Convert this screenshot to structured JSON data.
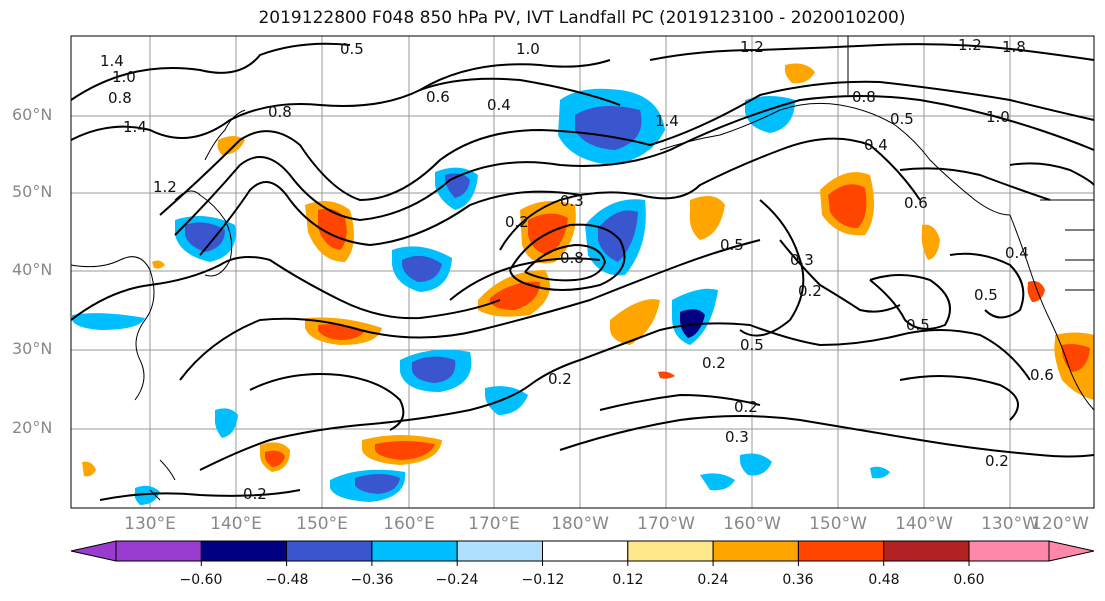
{
  "title": "2019122800 F048 850 hPa PV, IVT Landfall PC (2019123100 - 2020010200)",
  "map": {
    "lat_labels": [
      "60°N",
      "50°N",
      "40°N",
      "30°N",
      "20°N"
    ],
    "lon_labels": [
      "130°E",
      "140°E",
      "150°E",
      "160°E",
      "170°E",
      "180°W",
      "170°W",
      "160°W",
      "150°W",
      "140°W",
      "130°W",
      "120°W"
    ],
    "contour_labels": [
      "1.4",
      "1.0",
      "0.8",
      "1.4",
      "1.2",
      "0.5",
      "1.0",
      "0.8",
      "0.6",
      "0.4",
      "1.4",
      "1.2",
      "0.8",
      "1.0",
      "0.5",
      "0.4",
      "0.2",
      "0.3",
      "0.8",
      "0.5",
      "0.3",
      "0.2",
      "0.6",
      "0.5",
      "0.4",
      "0.5",
      "0.2",
      "0.2",
      "0.3",
      "0.2",
      "0.5",
      "0.2",
      "0.2",
      "0.6",
      "1.2",
      "1.8"
    ]
  },
  "colorbar": {
    "colors": [
      "#9a3bd0",
      "#000080",
      "#3a56cf",
      "#00bfff",
      "#b0e0ff",
      "#ffffff",
      "#ffe88a",
      "#ffa500",
      "#ff4500",
      "#b22222",
      "#ff88aa"
    ],
    "tick_labels": [
      "−0.60",
      "−0.48",
      "−0.36",
      "−0.24",
      "−0.12",
      "0.12",
      "0.24",
      "0.36",
      "0.48",
      "0.60"
    ]
  }
}
